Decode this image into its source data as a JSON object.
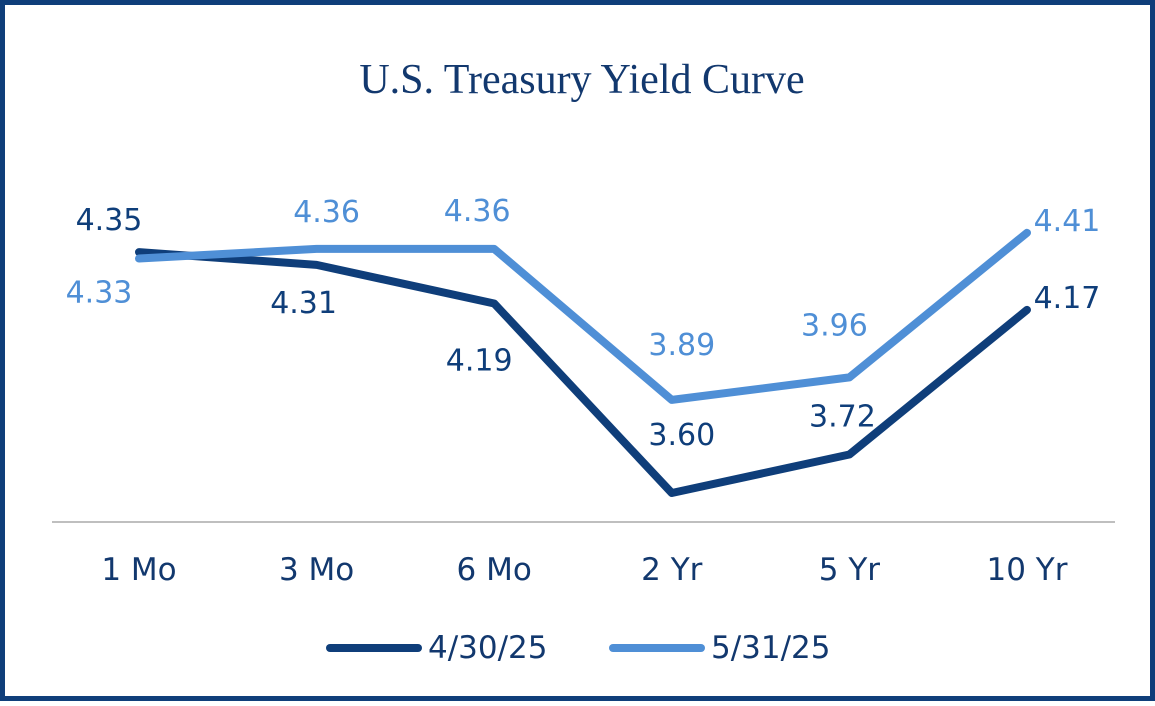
{
  "chart_data": {
    "type": "line",
    "title": "U.S. Treasury Yield Curve",
    "categories": [
      "1 Mo",
      "3 Mo",
      "6 Mo",
      "2 Yr",
      "5 Yr",
      "10 Yr"
    ],
    "series": [
      {
        "name": "4/30/25",
        "color": "#0f3e7a",
        "values": [
          4.35,
          4.31,
          4.19,
          3.6,
          3.72,
          4.17
        ],
        "labels": [
          "4.35",
          "4.31",
          "4.19",
          "3.60",
          "3.72",
          "4.17"
        ]
      },
      {
        "name": "5/31/25",
        "color": "#4f8fd6",
        "values": [
          4.33,
          4.36,
          4.36,
          3.89,
          3.96,
          4.41
        ],
        "labels": [
          "4.33",
          "4.36",
          "4.36",
          "3.89",
          "3.96",
          "4.41"
        ]
      }
    ],
    "legend": "bottom",
    "grid": false,
    "axis_color": "#bfbfbf"
  }
}
